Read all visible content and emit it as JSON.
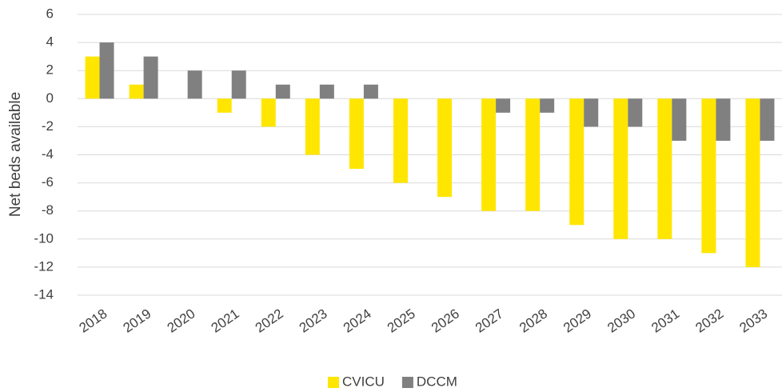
{
  "chart_data": {
    "type": "bar",
    "y_label": "Net beds available",
    "categories": [
      "2018",
      "2019",
      "2020",
      "2021",
      "2022",
      "2023",
      "2024",
      "2025",
      "2026",
      "2027",
      "2028",
      "2029",
      "2030",
      "2031",
      "2032",
      "2033"
    ],
    "series": [
      {
        "name": "CVICU",
        "color": "#FFE600",
        "values": [
          3,
          1,
          0,
          -1,
          -2,
          -4,
          -5,
          -6,
          -7,
          -8,
          -8,
          -9,
          -10,
          -10,
          -11,
          -12
        ]
      },
      {
        "name": "DCCM",
        "color": "#808080",
        "values": [
          4,
          3,
          2,
          2,
          1,
          1,
          1,
          0,
          0,
          -1,
          -1,
          -2,
          -2,
          -3,
          -3,
          -3
        ]
      }
    ],
    "ylim": [
      -14,
      6
    ],
    "yticks": [
      -14,
      -12,
      -10,
      -8,
      -6,
      -4,
      -2,
      0,
      2,
      4,
      6
    ],
    "grid": true,
    "legend": "bottom"
  }
}
